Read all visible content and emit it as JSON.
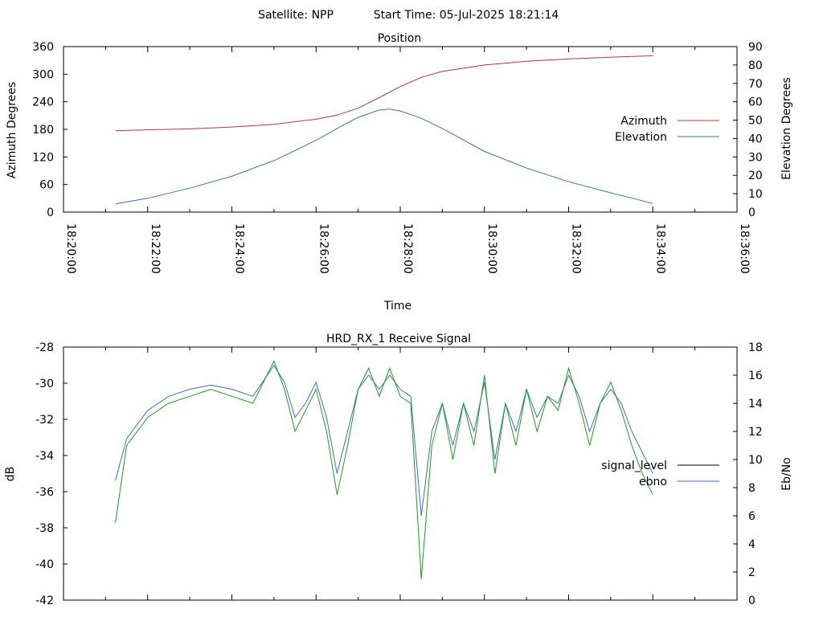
{
  "header": {
    "satellite_label": "Satellite: NPP",
    "start_time_label": "Start Time: 05-Jul-2025 18:21:14"
  },
  "chart_data": [
    {
      "id": "position",
      "type": "line",
      "title": "Position",
      "xlabel": "Time",
      "ylabel": "Azimuth Degrees",
      "y2label": "Elevation Degrees",
      "x_axis": {
        "min": "18:20:00",
        "max": "18:36:00",
        "tick_labels": [
          "18:20:00",
          "18:22:00",
          "18:24:00",
          "18:26:00",
          "18:28:00",
          "18:30:00",
          "18:32:00",
          "18:34:00",
          "18:36:00"
        ]
      },
      "y_axis": {
        "range": [
          0,
          360
        ],
        "ticks": [
          0,
          60,
          120,
          180,
          240,
          300,
          360
        ]
      },
      "y2_axis": {
        "range": [
          0,
          90
        ],
        "ticks": [
          0,
          10,
          20,
          30,
          40,
          50,
          60,
          70,
          80,
          90
        ]
      },
      "grid": false,
      "legend_position": "right",
      "series": [
        {
          "name": "Azimuth",
          "axis": "y",
          "color": "#b03a3a",
          "x": [
            "18:21:14",
            "18:22:00",
            "18:23:00",
            "18:24:00",
            "18:25:00",
            "18:26:00",
            "18:26:30",
            "18:27:00",
            "18:27:30",
            "18:28:00",
            "18:28:30",
            "18:29:00",
            "18:30:00",
            "18:31:00",
            "18:32:00",
            "18:33:00",
            "18:34:00"
          ],
          "values": [
            177,
            179,
            181,
            185,
            191,
            202,
            211,
            226,
            249,
            273,
            293,
            306,
            320,
            328,
            333,
            337,
            340
          ]
        },
        {
          "name": "Elevation",
          "axis": "y2",
          "color": "#3a72b0",
          "x": [
            "18:21:14",
            "18:22:00",
            "18:23:00",
            "18:24:00",
            "18:25:00",
            "18:26:00",
            "18:26:30",
            "18:27:00",
            "18:27:30",
            "18:27:45",
            "18:28:00",
            "18:28:30",
            "18:29:00",
            "18:30:00",
            "18:31:00",
            "18:32:00",
            "18:33:00",
            "18:34:00"
          ],
          "values": [
            4.5,
            7.5,
            13,
            19.5,
            28,
            39,
            45.5,
            51.5,
            55.5,
            56,
            55,
            51,
            45.5,
            33,
            24,
            16.5,
            10.5,
            4.7
          ]
        }
      ]
    },
    {
      "id": "receive-signal",
      "type": "line",
      "title": "HRD_RX_1 Receive Signal",
      "xlabel": "",
      "ylabel": "dB",
      "y2label": "Eb/No",
      "x_axis": {
        "min": "18:20:00",
        "max": "18:36:00",
        "tick_labels": []
      },
      "y_axis": {
        "range": [
          -42,
          -28
        ],
        "ticks": [
          -42,
          -40,
          -38,
          -36,
          -34,
          -32,
          -30,
          -28
        ]
      },
      "y2_axis": {
        "range": [
          0,
          18
        ],
        "ticks": [
          0,
          2,
          4,
          6,
          8,
          10,
          12,
          14,
          16,
          18
        ]
      },
      "grid": false,
      "legend_position": "right",
      "series": [
        {
          "name": "signal_level",
          "axis": "y",
          "color": "#000000",
          "x": [],
          "values": []
        },
        {
          "name": "ebno",
          "axis": "y2",
          "color": "#3a72b0",
          "x": [
            "18:21:14",
            "18:21:30",
            "18:22:00",
            "18:22:30",
            "18:23:00",
            "18:23:30",
            "18:24:00",
            "18:24:30",
            "18:25:00",
            "18:25:15",
            "18:25:30",
            "18:25:45",
            "18:26:00",
            "18:26:15",
            "18:26:30",
            "18:26:45",
            "18:27:00",
            "18:27:15",
            "18:27:30",
            "18:27:45",
            "18:28:00",
            "18:28:15",
            "18:28:30",
            "18:28:45",
            "18:29:00",
            "18:29:15",
            "18:29:30",
            "18:29:45",
            "18:30:00",
            "18:30:15",
            "18:30:30",
            "18:30:45",
            "18:31:00",
            "18:31:15",
            "18:31:30",
            "18:31:45",
            "18:32:00",
            "18:32:15",
            "18:32:30",
            "18:32:45",
            "18:33:00",
            "18:33:15",
            "18:33:30",
            "18:33:45",
            "18:34:00"
          ],
          "values": [
            8.5,
            11.5,
            13.5,
            14.5,
            15,
            15.3,
            15,
            14.5,
            16.7,
            15.5,
            13,
            14,
            15.5,
            13,
            9,
            12,
            15,
            16,
            15,
            16,
            15,
            14.5,
            6,
            12,
            14,
            11,
            14,
            12,
            15.5,
            10,
            14,
            12,
            15,
            13,
            14.5,
            14,
            16,
            14.5,
            12,
            14,
            15,
            14,
            12,
            10.5,
            9
          ]
        },
        {
          "name": "",
          "axis": "y2",
          "color": "#1a9e1a",
          "x": [
            "18:21:14",
            "18:21:30",
            "18:22:00",
            "18:22:30",
            "18:23:00",
            "18:23:30",
            "18:24:00",
            "18:24:30",
            "18:25:00",
            "18:25:15",
            "18:25:30",
            "18:25:45",
            "18:26:00",
            "18:26:15",
            "18:26:30",
            "18:26:45",
            "18:27:00",
            "18:27:15",
            "18:27:30",
            "18:27:45",
            "18:28:00",
            "18:28:15",
            "18:28:30",
            "18:28:45",
            "18:29:00",
            "18:29:15",
            "18:29:30",
            "18:29:45",
            "18:30:00",
            "18:30:15",
            "18:30:30",
            "18:30:45",
            "18:31:00",
            "18:31:15",
            "18:31:30",
            "18:31:45",
            "18:32:00",
            "18:32:15",
            "18:32:30",
            "18:32:45",
            "18:33:00",
            "18:33:15",
            "18:33:30",
            "18:33:45",
            "18:34:00"
          ],
          "values": [
            5.5,
            11,
            13,
            14,
            14.5,
            15,
            14.5,
            14,
            17,
            15,
            12,
            13.5,
            15,
            12,
            7.5,
            11,
            15,
            16.5,
            14.5,
            16.5,
            14.5,
            14,
            1.5,
            11,
            14,
            10,
            14,
            11,
            16,
            9,
            14,
            11,
            15,
            12,
            14.5,
            13.5,
            16.5,
            14,
            11,
            14,
            15.5,
            13.5,
            11,
            9,
            7.5
          ]
        }
      ]
    }
  ]
}
